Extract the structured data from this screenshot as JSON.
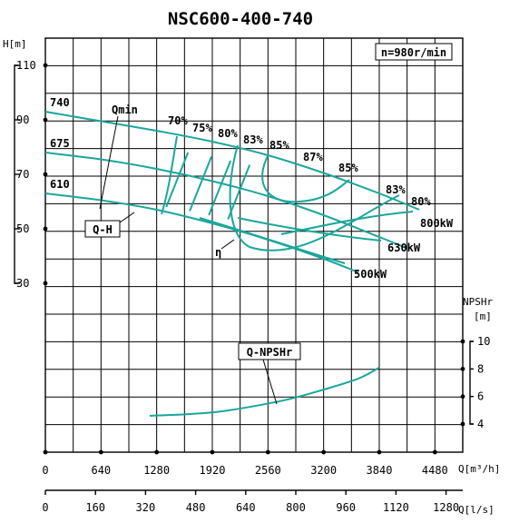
{
  "chart_data": {
    "type": "line",
    "title": "NSC600-400-740",
    "speed_label": "n=980r/min",
    "y_label_head": "H[m]",
    "y_label_npsh": "NPSHr",
    "y_label_npsh_unit": "[m]",
    "x_label_m3h": "Q[m³/h]",
    "x_label_ls": "Q[l/s]",
    "x_ticks_m3h": [
      "0",
      "640",
      "1280",
      "1920",
      "2560",
      "3200",
      "3840",
      "4480"
    ],
    "x_ticks_ls": [
      "0",
      "160",
      "320",
      "480",
      "640",
      "800",
      "960",
      "1120",
      "1280"
    ],
    "y_ticks_head": [
      "110",
      "90",
      "70",
      "50",
      "30"
    ],
    "y_ticks_npsh": [
      "10",
      "8",
      "6",
      "4"
    ],
    "xlim_m3h": [
      0,
      4800
    ],
    "ylim_head": [
      30,
      110
    ],
    "ylim_npsh": [
      4,
      10
    ],
    "grid": true,
    "impeller_curves": [
      {
        "name": "740",
        "x": [
          0,
          640,
          1280,
          1920,
          2560,
          3200,
          3840,
          4300
        ],
        "y": [
          93,
          89.5,
          86,
          82,
          77,
          70.5,
          63,
          57
        ]
      },
      {
        "name": "675",
        "x": [
          0,
          640,
          1280,
          1920,
          2560,
          3200,
          3840,
          4150
        ],
        "y": [
          78,
          75.5,
          72,
          67.5,
          62,
          55,
          47,
          43
        ]
      },
      {
        "name": "610",
        "x": [
          0,
          640,
          1280,
          1920,
          2560,
          3200,
          3600
        ],
        "y": [
          63,
          60.5,
          57,
          52,
          46,
          39,
          34
        ]
      }
    ],
    "efficiency_labels": [
      "70%",
      "75%",
      "80%",
      "83%",
      "85%",
      "87%",
      "85%",
      "83%",
      "80%"
    ],
    "power_labels": [
      "800kW",
      "630kW",
      "500kW"
    ],
    "callout_labels": {
      "qmin": "Qmin",
      "qh": "Q-H",
      "eta": "η",
      "npsh": "Q-NPSHr"
    },
    "npsh_curve": {
      "x": [
        1200,
        1600,
        2000,
        2400,
        2800,
        3200,
        3600,
        3840
      ],
      "y": [
        4.6,
        4.7,
        4.9,
        5.3,
        5.8,
        6.5,
        7.3,
        8.1
      ]
    }
  }
}
